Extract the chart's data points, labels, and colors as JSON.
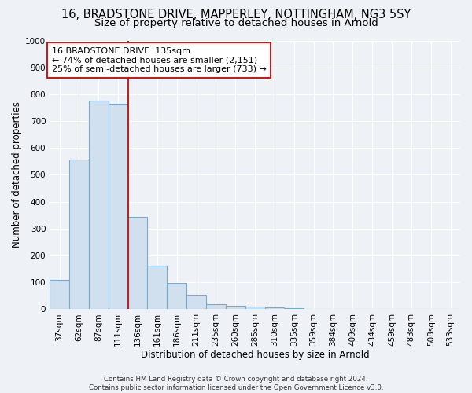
{
  "title": "16, BRADSTONE DRIVE, MAPPERLEY, NOTTINGHAM, NG3 5SY",
  "subtitle": "Size of property relative to detached houses in Arnold",
  "xlabel": "Distribution of detached houses by size in Arnold",
  "ylabel": "Number of detached properties",
  "categories": [
    "37sqm",
    "62sqm",
    "87sqm",
    "111sqm",
    "136sqm",
    "161sqm",
    "186sqm",
    "211sqm",
    "235sqm",
    "260sqm",
    "285sqm",
    "310sqm",
    "335sqm",
    "359sqm",
    "384sqm",
    "409sqm",
    "434sqm",
    "459sqm",
    "483sqm",
    "508sqm",
    "533sqm"
  ],
  "values": [
    110,
    558,
    775,
    765,
    343,
    163,
    97,
    55,
    20,
    13,
    10,
    8,
    5,
    2,
    0,
    0,
    0,
    0,
    0,
    0,
    0
  ],
  "bar_color": "#d0e0ee",
  "bar_edge_color": "#7baacf",
  "vline_color": "#bb2222",
  "annotation_text": "16 BRADSTONE DRIVE: 135sqm\n← 74% of detached houses are smaller (2,151)\n25% of semi-detached houses are larger (733) →",
  "annotation_box_color": "#ffffff",
  "annotation_box_edge": "#cc0000",
  "footer_text": "Contains HM Land Registry data © Crown copyright and database right 2024.\nContains public sector information licensed under the Open Government Licence v3.0.",
  "ylim": [
    0,
    1000
  ],
  "yticks": [
    0,
    100,
    200,
    300,
    400,
    500,
    600,
    700,
    800,
    900,
    1000
  ],
  "bg_color": "#eef2f7",
  "grid_color": "#ffffff",
  "title_fontsize": 10.5,
  "subtitle_fontsize": 9.5,
  "axis_label_fontsize": 8.5,
  "tick_fontsize": 7.5,
  "annotation_fontsize": 8.0,
  "footer_fontsize": 6.2
}
